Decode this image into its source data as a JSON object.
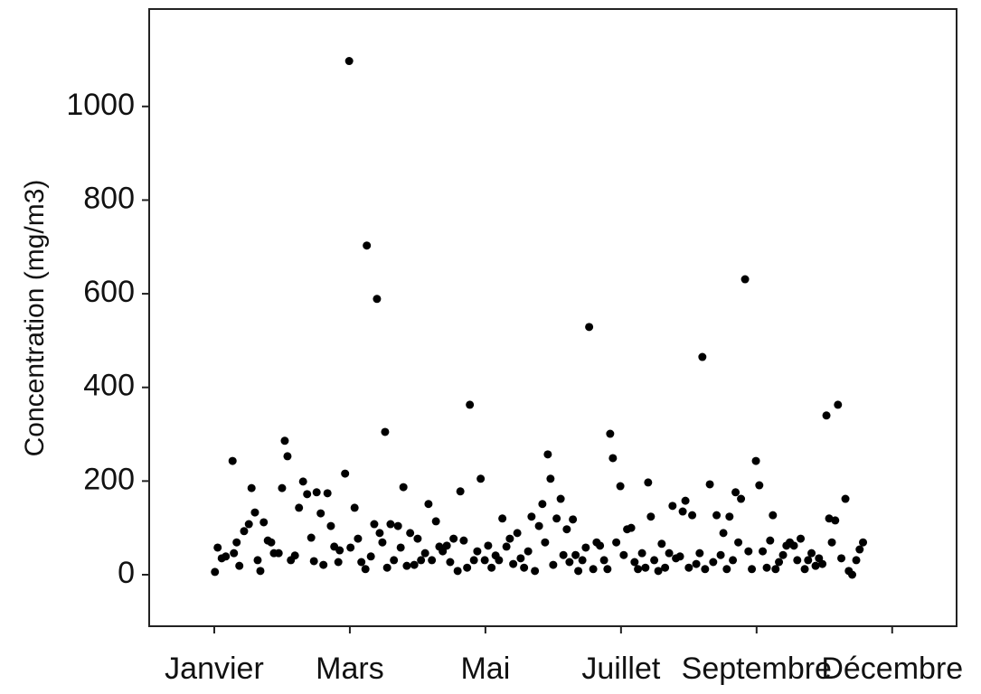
{
  "chart_data": {
    "type": "scatter",
    "y_label": "Concentration (mg/m3)",
    "color": "#000000",
    "xlim": [
      -0.96,
      10.95
    ],
    "xticks": [
      {
        "value": 0,
        "label": "Janvier"
      },
      {
        "value": 2,
        "label": "Mars"
      },
      {
        "value": 4,
        "label": "Mai"
      },
      {
        "value": 6,
        "label": "Juillet"
      },
      {
        "value": 8,
        "label": "Septembre"
      },
      {
        "value": 10,
        "label": "Décembre"
      }
    ],
    "ylim": [
      -110,
      1208
    ],
    "yticks": [
      0,
      200,
      400,
      600,
      800,
      1000
    ],
    "x": [
      0.01,
      0.05,
      0.11,
      0.17,
      0.27,
      0.29,
      0.33,
      0.37,
      0.44,
      0.51,
      0.55,
      0.6,
      0.64,
      0.68,
      0.73,
      0.79,
      0.84,
      0.88,
      0.95,
      1.0,
      1.04,
      1.08,
      1.13,
      1.19,
      1.25,
      1.31,
      1.37,
      1.43,
      1.47,
      1.51,
      1.57,
      1.61,
      1.67,
      1.72,
      1.77,
      1.83,
      1.85,
      1.93,
      1.99,
      2.01,
      2.07,
      2.12,
      2.17,
      2.23,
      2.25,
      2.31,
      2.36,
      2.4,
      2.44,
      2.48,
      2.52,
      2.55,
      2.6,
      2.65,
      2.71,
      2.75,
      2.79,
      2.84,
      2.89,
      2.95,
      3.0,
      3.05,
      3.11,
      3.16,
      3.21,
      3.27,
      3.32,
      3.37,
      3.43,
      3.48,
      3.53,
      3.59,
      3.63,
      3.68,
      3.73,
      3.77,
      3.83,
      3.88,
      3.93,
      3.99,
      4.04,
      4.09,
      4.15,
      4.2,
      4.25,
      4.31,
      4.36,
      4.41,
      4.47,
      4.52,
      4.57,
      4.63,
      4.68,
      4.73,
      4.79,
      4.84,
      4.88,
      4.92,
      4.96,
      5.0,
      5.05,
      5.11,
      5.15,
      5.2,
      5.24,
      5.29,
      5.33,
      5.37,
      5.43,
      5.48,
      5.53,
      5.59,
      5.64,
      5.69,
      5.75,
      5.8,
      5.84,
      5.88,
      5.93,
      5.99,
      6.04,
      6.09,
      6.15,
      6.2,
      6.25,
      6.31,
      6.36,
      6.4,
      6.44,
      6.49,
      6.55,
      6.6,
      6.65,
      6.71,
      6.76,
      6.81,
      6.87,
      6.91,
      6.95,
      7.0,
      7.05,
      7.11,
      7.16,
      7.2,
      7.24,
      7.31,
      7.36,
      7.41,
      7.47,
      7.51,
      7.56,
      7.6,
      7.65,
      7.69,
      7.73,
      7.77,
      7.83,
      7.88,
      7.93,
      7.99,
      8.04,
      8.09,
      8.15,
      8.2,
      8.24,
      8.28,
      8.33,
      8.39,
      8.44,
      8.49,
      8.55,
      8.6,
      8.65,
      8.71,
      8.76,
      8.81,
      8.87,
      8.92,
      8.97,
      9.03,
      9.07,
      9.11,
      9.16,
      9.2,
      9.25,
      9.31,
      9.36,
      9.41,
      9.47,
      9.52,
      9.57
    ],
    "values": [
      6,
      58,
      35,
      39,
      243,
      46,
      69,
      19,
      93,
      108,
      185,
      133,
      31,
      8,
      112,
      73,
      69,
      46,
      46,
      185,
      286,
      253,
      31,
      41,
      143,
      199,
      172,
      79,
      29,
      176,
      131,
      21,
      174,
      104,
      60,
      27,
      52,
      216,
      1097,
      58,
      143,
      77,
      27,
      12,
      703,
      39,
      108,
      589,
      89,
      69,
      305,
      15,
      108,
      31,
      104,
      58,
      187,
      19,
      89,
      21,
      77,
      31,
      46,
      151,
      31,
      114,
      60,
      50,
      62,
      27,
      77,
      8,
      178,
      73,
      15,
      363,
      31,
      50,
      205,
      31,
      62,
      15,
      41,
      31,
      120,
      60,
      77,
      23,
      89,
      35,
      15,
      50,
      124,
      8,
      104,
      151,
      69,
      257,
      205,
      21,
      120,
      162,
      42,
      97,
      27,
      118,
      42,
      8,
      31,
      58,
      529,
      12,
      69,
      62,
      31,
      12,
      301,
      249,
      69,
      189,
      42,
      97,
      100,
      27,
      12,
      46,
      15,
      197,
      124,
      31,
      8,
      66,
      15,
      46,
      147,
      35,
      39,
      135,
      158,
      15,
      127,
      23,
      46,
      465,
      12,
      193,
      27,
      127,
      42,
      89,
      12,
      124,
      31,
      176,
      69,
      162,
      631,
      50,
      12,
      243,
      191,
      50,
      15,
      73,
      127,
      12,
      27,
      42,
      62,
      69,
      62,
      31,
      77,
      12,
      31,
      46,
      19,
      35,
      23,
      340,
      120,
      69,
      116,
      363,
      35,
      162,
      8,
      0,
      31,
      54,
      69
    ]
  }
}
